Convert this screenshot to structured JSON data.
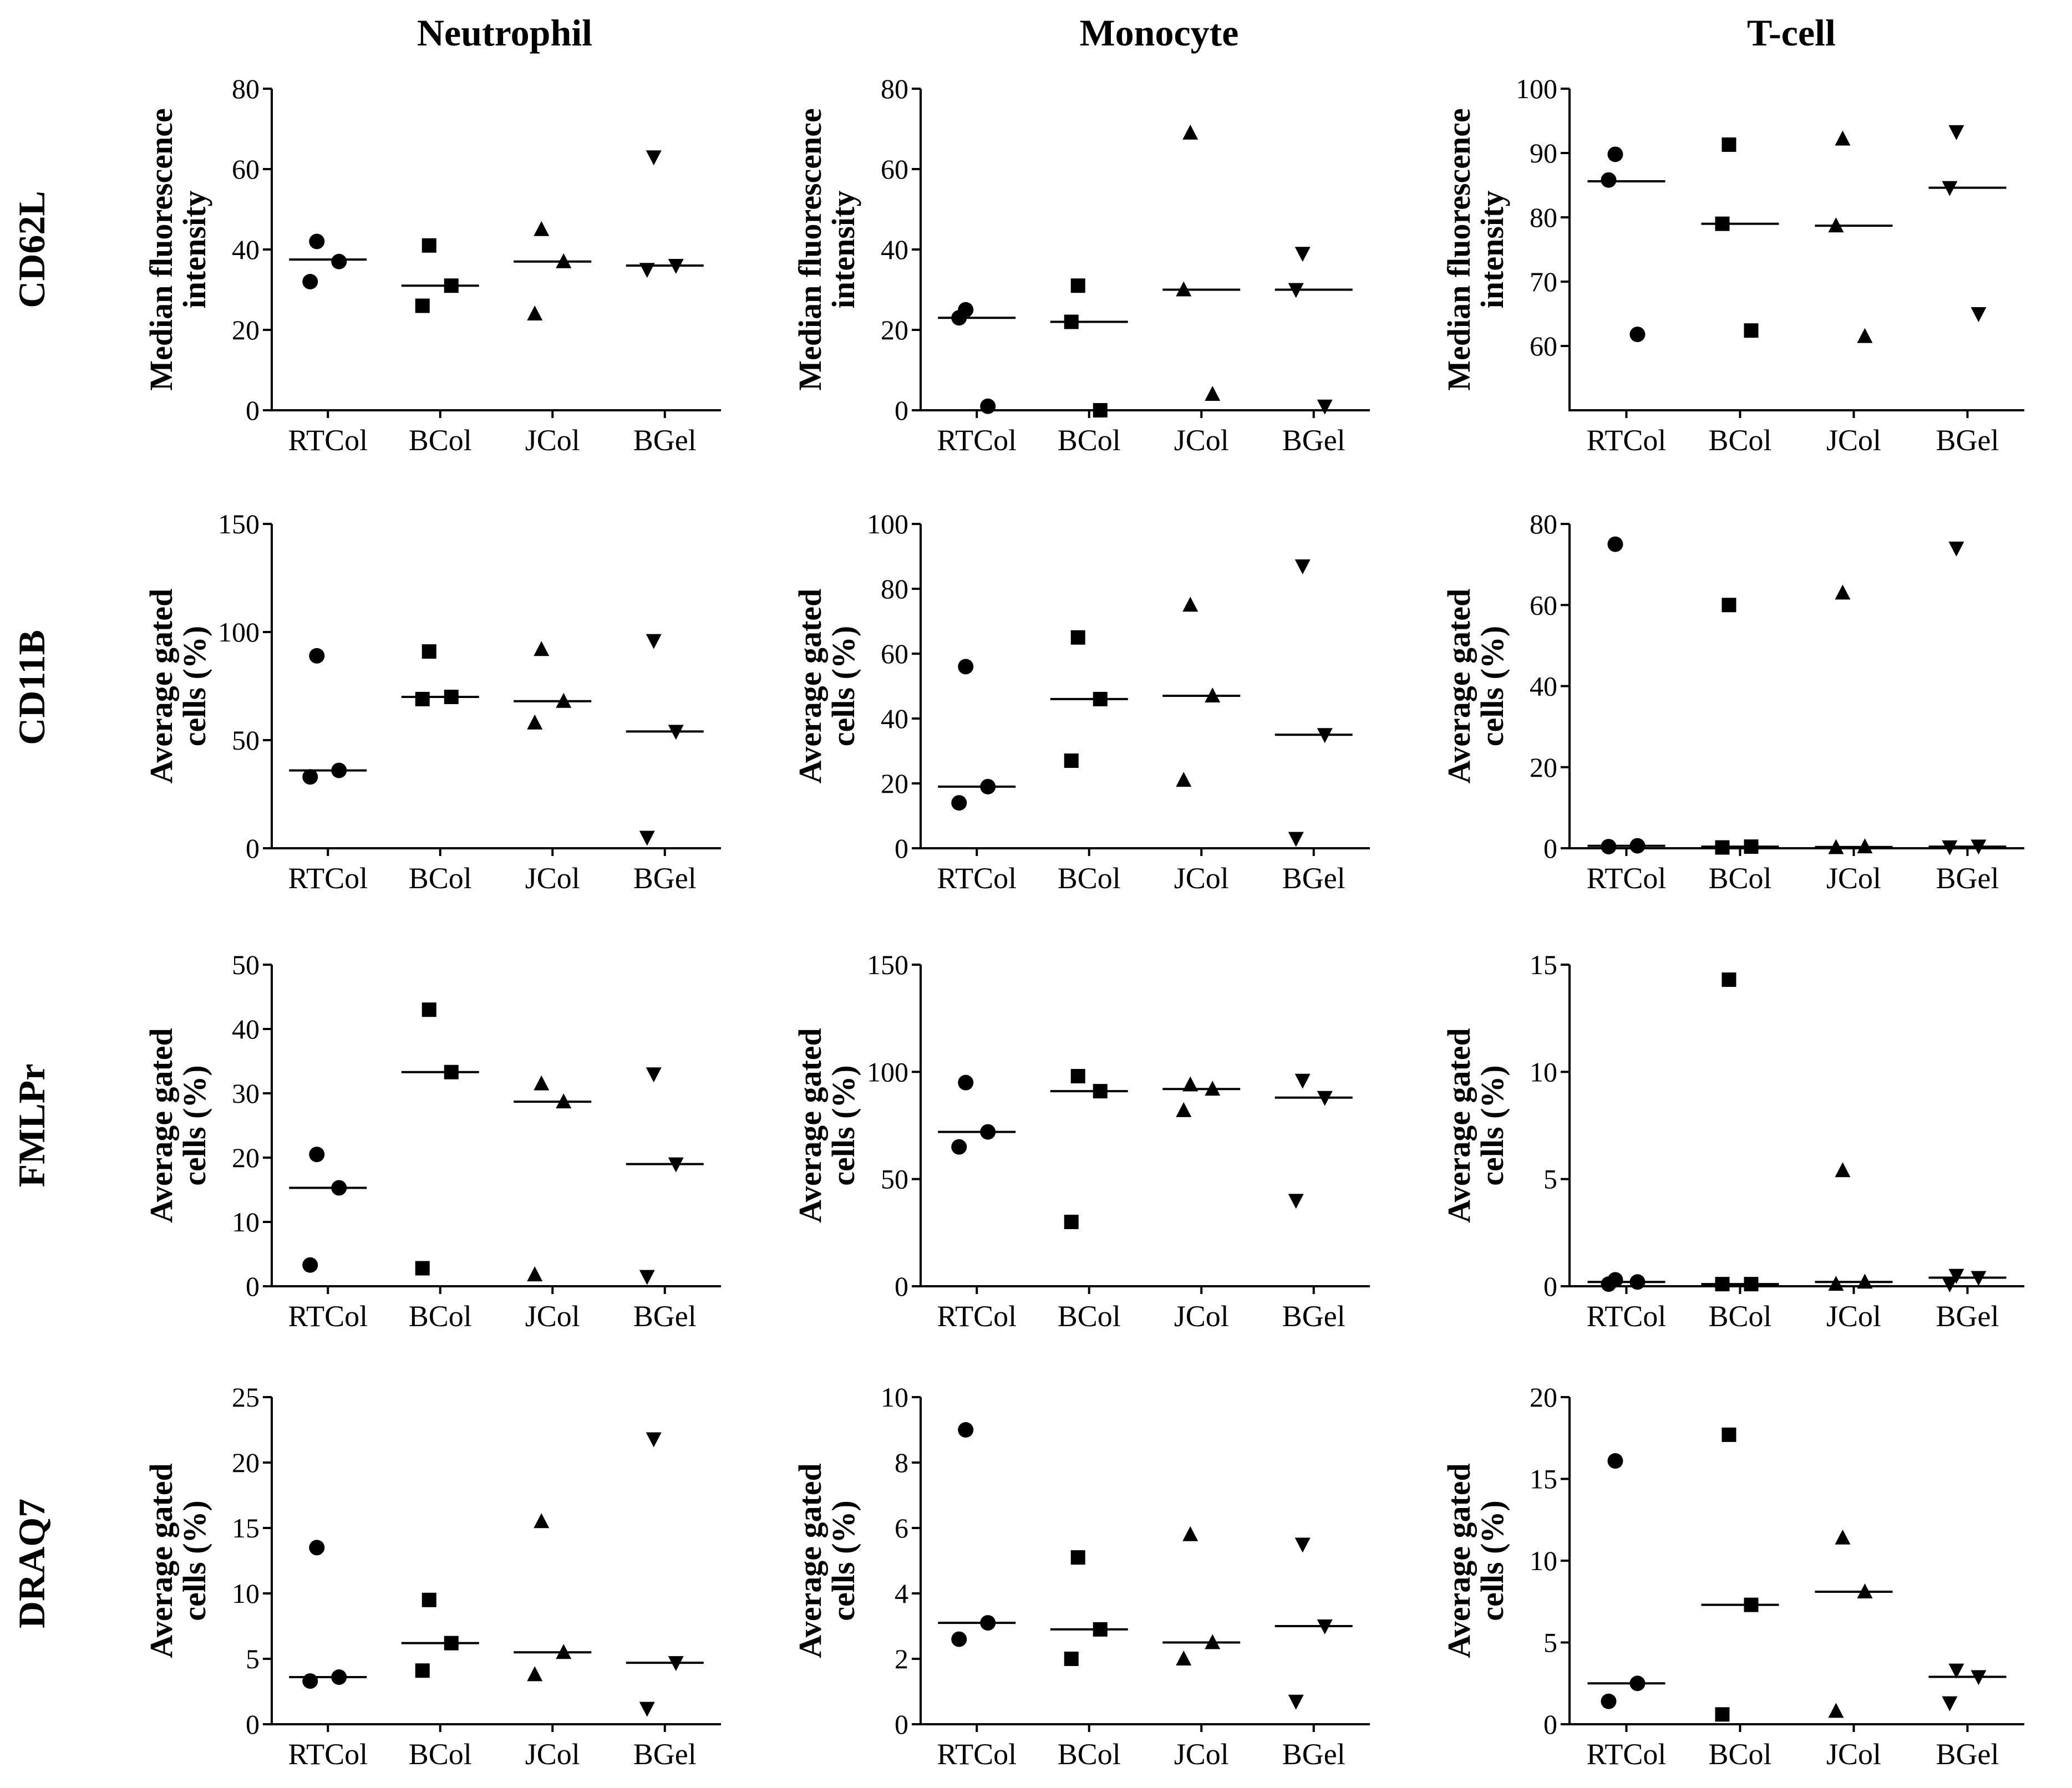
{
  "column_titles": [
    "Neutrophil",
    "Monocyte",
    "T-cell"
  ],
  "row_titles": [
    "CD62L",
    "CD11B",
    "FMLPr",
    "DRAQ7"
  ],
  "colors": {
    "ink": "#000000",
    "background": "#ffffff"
  },
  "chart_data": [
    {
      "type": "scatter",
      "row": 0,
      "col": 0,
      "ylabel": [
        "Median fluorescence",
        "intensity"
      ],
      "categories": [
        "RTCol",
        "BCol",
        "JCol",
        "BGel"
      ],
      "ylim": [
        0,
        80
      ],
      "yticks": [
        0,
        20,
        40,
        60,
        80
      ],
      "markers": [
        "circle",
        "square",
        "triangle-up",
        "triangle-down"
      ],
      "points": [
        [
          42,
          32,
          37
        ],
        [
          41,
          26,
          31
        ],
        [
          45,
          24,
          37
        ],
        [
          63,
          35,
          36
        ]
      ],
      "medians": [
        37.5,
        31,
        37,
        36
      ]
    },
    {
      "type": "scatter",
      "row": 0,
      "col": 1,
      "ylabel": [
        "Median fluorescence",
        "intensity"
      ],
      "categories": [
        "RTCol",
        "BCol",
        "JCol",
        "BGel"
      ],
      "ylim": [
        0,
        80
      ],
      "yticks": [
        0,
        20,
        40,
        60,
        80
      ],
      "markers": [
        "circle",
        "square",
        "triangle-up",
        "triangle-down"
      ],
      "points": [
        [
          25,
          23,
          1
        ],
        [
          31,
          22,
          0
        ],
        [
          69,
          30,
          4
        ],
        [
          39,
          30,
          1
        ]
      ],
      "medians": [
        23,
        22,
        30,
        30
      ]
    },
    {
      "type": "scatter",
      "row": 0,
      "col": 2,
      "ylabel": [
        "Median fluorescence",
        "intensity"
      ],
      "categories": [
        "RTCol",
        "BCol",
        "JCol",
        "BGel"
      ],
      "ylim": [
        50,
        100
      ],
      "yticks": [
        60,
        70,
        80,
        90,
        100
      ],
      "markers": [
        "circle",
        "square",
        "triangle-up",
        "triangle-down"
      ],
      "points": [
        [
          89.8,
          85.8,
          61.8
        ],
        [
          91.3,
          79.0,
          62.4
        ],
        [
          92.2,
          78.7,
          61.5
        ],
        [
          93.3,
          84.6,
          65.0
        ]
      ],
      "medians": [
        85.6,
        79.0,
        78.7,
        84.6
      ]
    },
    {
      "type": "scatter",
      "row": 1,
      "col": 0,
      "ylabel": [
        "Average gated",
        "cells (%)"
      ],
      "categories": [
        "RTCol",
        "BCol",
        "JCol",
        "BGel"
      ],
      "ylim": [
        0,
        150
      ],
      "yticks": [
        0,
        50,
        100,
        150
      ],
      "markers": [
        "circle",
        "square",
        "triangle-up",
        "triangle-down"
      ],
      "points": [
        [
          89,
          33,
          36
        ],
        [
          91,
          69,
          70
        ],
        [
          92,
          58,
          68
        ],
        [
          96,
          5,
          54
        ]
      ],
      "medians": [
        36,
        70,
        68,
        54
      ]
    },
    {
      "type": "scatter",
      "row": 1,
      "col": 1,
      "ylabel": [
        "Average gated",
        "cells (%)"
      ],
      "categories": [
        "RTCol",
        "BCol",
        "JCol",
        "BGel"
      ],
      "ylim": [
        0,
        100
      ],
      "yticks": [
        0,
        20,
        40,
        60,
        80,
        100
      ],
      "markers": [
        "circle",
        "square",
        "triangle-up",
        "triangle-down"
      ],
      "points": [
        [
          56,
          14,
          19
        ],
        [
          65,
          27,
          46
        ],
        [
          75,
          21,
          47
        ],
        [
          87,
          3,
          35
        ]
      ],
      "medians": [
        19,
        46,
        47,
        35
      ]
    },
    {
      "type": "scatter",
      "row": 1,
      "col": 2,
      "ylabel": [
        "Average gated",
        "cells (%)"
      ],
      "categories": [
        "RTCol",
        "BCol",
        "JCol",
        "BGel"
      ],
      "ylim": [
        0,
        80
      ],
      "yticks": [
        0,
        20,
        40,
        60,
        80
      ],
      "markers": [
        "circle",
        "square",
        "triangle-up",
        "triangle-down"
      ],
      "points": [
        [
          75,
          0.4,
          0.6
        ],
        [
          60,
          0.2,
          0.4
        ],
        [
          63,
          0.2,
          0.4
        ],
        [
          74,
          0.3,
          0.5
        ]
      ],
      "medians": [
        0.6,
        0.4,
        0.3,
        0.4
      ]
    },
    {
      "type": "scatter",
      "row": 2,
      "col": 0,
      "ylabel": [
        "Average gated",
        "cells (%)"
      ],
      "categories": [
        "RTCol",
        "BCol",
        "JCol",
        "BGel"
      ],
      "ylim": [
        0,
        50
      ],
      "yticks": [
        0,
        10,
        20,
        30,
        40,
        50
      ],
      "markers": [
        "circle",
        "square",
        "triangle-up",
        "triangle-down"
      ],
      "points": [
        [
          20.5,
          3.3,
          15.3
        ],
        [
          43,
          2.8,
          33.3
        ],
        [
          31.5,
          1.8,
          28.7
        ],
        [
          33,
          1.5,
          19
        ]
      ],
      "medians": [
        15.3,
        33.3,
        28.7,
        19
      ]
    },
    {
      "type": "scatter",
      "row": 2,
      "col": 1,
      "ylabel": [
        "Average gated",
        "cells (%)"
      ],
      "categories": [
        "RTCol",
        "BCol",
        "JCol",
        "BGel"
      ],
      "ylim": [
        0,
        150
      ],
      "yticks": [
        0,
        50,
        100,
        150
      ],
      "markers": [
        "circle",
        "square",
        "triangle-up",
        "triangle-down"
      ],
      "points": [
        [
          95,
          65,
          72
        ],
        [
          98,
          30,
          91
        ],
        [
          94,
          82,
          92
        ],
        [
          96,
          40,
          88
        ]
      ],
      "medians": [
        72,
        91,
        92,
        88
      ]
    },
    {
      "type": "scatter",
      "row": 2,
      "col": 2,
      "ylabel": [
        "Average gated",
        "cells (%)"
      ],
      "categories": [
        "RTCol",
        "BCol",
        "JCol",
        "BGel"
      ],
      "ylim": [
        0,
        15
      ],
      "yticks": [
        0,
        5,
        10,
        15
      ],
      "markers": [
        "circle",
        "square",
        "triangle-up",
        "triangle-down"
      ],
      "points": [
        [
          0.3,
          0.1,
          0.2
        ],
        [
          14.3,
          0.1,
          0.1
        ],
        [
          5.4,
          0.1,
          0.2
        ],
        [
          0.5,
          0.1,
          0.4
        ]
      ],
      "medians": [
        0.2,
        0.1,
        0.2,
        0.4
      ]
    },
    {
      "type": "scatter",
      "row": 3,
      "col": 0,
      "ylabel": [
        "Average gated",
        "cells (%)"
      ],
      "categories": [
        "RTCol",
        "BCol",
        "JCol",
        "BGel"
      ],
      "ylim": [
        0,
        25
      ],
      "yticks": [
        0,
        5,
        10,
        15,
        20,
        25
      ],
      "markers": [
        "circle",
        "square",
        "triangle-up",
        "triangle-down"
      ],
      "points": [
        [
          13.5,
          3.3,
          3.6
        ],
        [
          9.5,
          4.1,
          6.2
        ],
        [
          15.5,
          3.8,
          5.5
        ],
        [
          21.8,
          1.2,
          4.7
        ]
      ],
      "medians": [
        3.6,
        6.2,
        5.5,
        4.7
      ]
    },
    {
      "type": "scatter",
      "row": 3,
      "col": 1,
      "ylabel": [
        "Average gated",
        "cells (%)"
      ],
      "categories": [
        "RTCol",
        "BCol",
        "JCol",
        "BGel"
      ],
      "ylim": [
        0,
        10
      ],
      "yticks": [
        0,
        2,
        4,
        6,
        8,
        10
      ],
      "markers": [
        "circle",
        "square",
        "triangle-up",
        "triangle-down"
      ],
      "points": [
        [
          9.0,
          2.6,
          3.1
        ],
        [
          5.1,
          2.0,
          2.9
        ],
        [
          5.8,
          2.0,
          2.5
        ],
        [
          5.5,
          0.7,
          3.0
        ]
      ],
      "medians": [
        3.1,
        2.9,
        2.5,
        3.0
      ]
    },
    {
      "type": "scatter",
      "row": 3,
      "col": 2,
      "ylabel": [
        "Average gated",
        "cells (%)"
      ],
      "categories": [
        "RTCol",
        "BCol",
        "JCol",
        "BGel"
      ],
      "ylim": [
        0,
        20
      ],
      "yticks": [
        0,
        5,
        10,
        15,
        20
      ],
      "markers": [
        "circle",
        "square",
        "triangle-up",
        "triangle-down"
      ],
      "points": [
        [
          16.1,
          1.4,
          2.5
        ],
        [
          17.7,
          0.6,
          7.3
        ],
        [
          11.4,
          0.8,
          8.1
        ],
        [
          3.3,
          1.3,
          2.9
        ]
      ],
      "medians": [
        2.5,
        7.3,
        8.1,
        2.9
      ]
    }
  ]
}
